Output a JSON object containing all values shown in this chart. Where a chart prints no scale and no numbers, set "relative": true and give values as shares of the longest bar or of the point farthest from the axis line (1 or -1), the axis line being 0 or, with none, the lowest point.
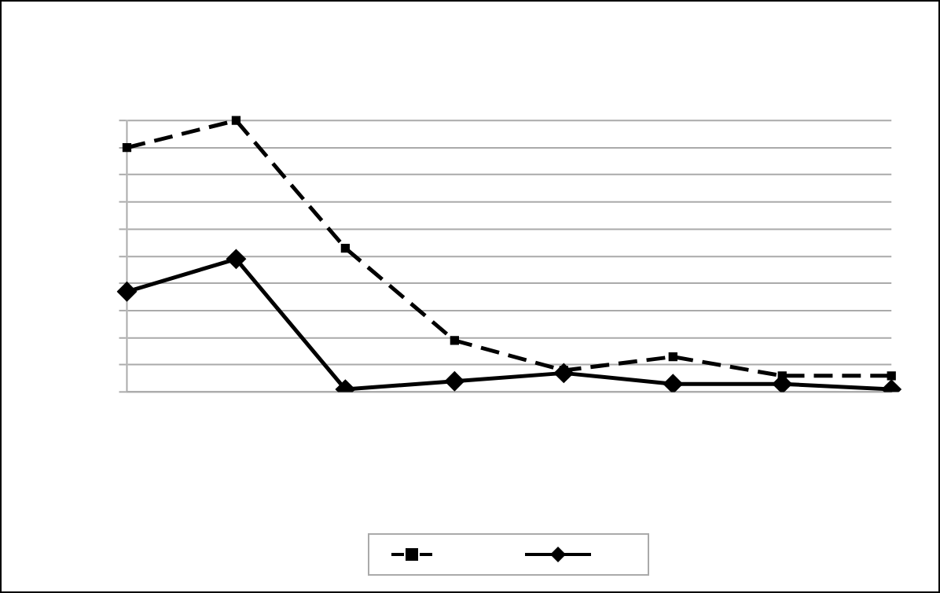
{
  "chart_data": {
    "type": "line",
    "relative": true,
    "categories": [
      null,
      null,
      null,
      null,
      null,
      null,
      null,
      null
    ],
    "series": [
      {
        "color": "#000000",
        "marker": "square",
        "line_style": "dashed",
        "values": [
          0.9,
          1,
          0.53,
          0.19,
          0.08,
          0.13,
          0.06,
          0.06
        ]
      },
      {
        "color": "#000000",
        "marker": "diamond",
        "line_style": "solid",
        "values": [
          0.37,
          0.49,
          0.01,
          0.04,
          0.07,
          0.03,
          0.03,
          0.01
        ]
      }
    ],
    "grid": "y"
  }
}
